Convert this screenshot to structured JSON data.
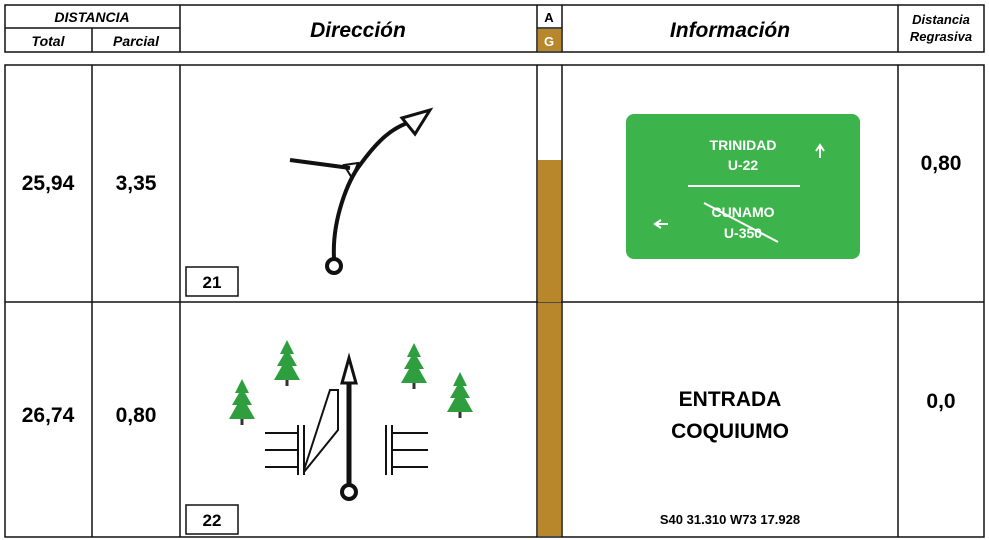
{
  "header": {
    "distancia": "DISTANCIA",
    "total": "Total",
    "parcial": "Parcial",
    "direccion": "Dirección",
    "a": "A",
    "g": "G",
    "informacion": "Información",
    "regresiva": [
      "Distancia",
      "Regrasiva"
    ]
  },
  "rows": [
    {
      "total": "25,94",
      "parcial": "3,35",
      "number": "21",
      "sign": [
        "TRINIDAD",
        "U-22",
        "CUNAMO",
        "U-350"
      ],
      "regresiva": "0,80"
    },
    {
      "total": "26,74",
      "parcial": "0,80",
      "number": "22",
      "info": [
        "ENTRADA",
        "COQUIUMO"
      ],
      "coords": "S40 31.310 W73 17.928",
      "regresiva": "0,0"
    }
  ]
}
